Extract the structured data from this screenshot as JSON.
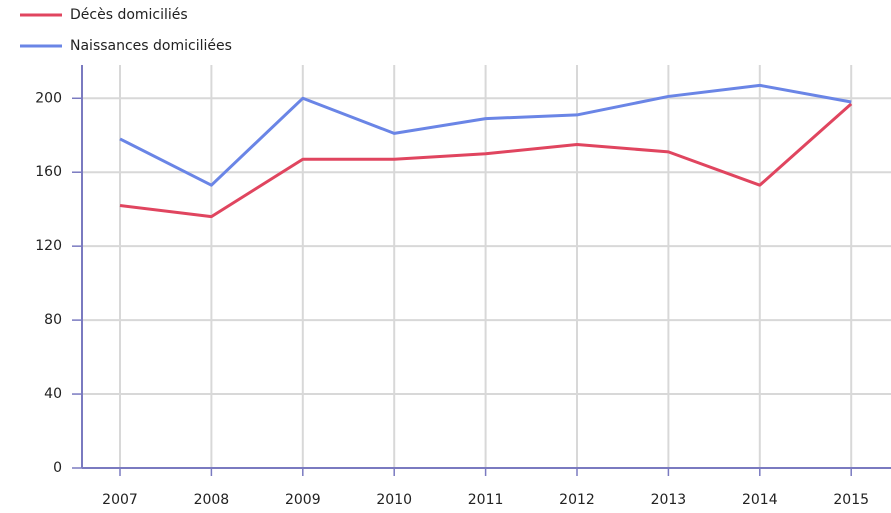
{
  "chart_data": {
    "type": "line",
    "categories": [
      "2007",
      "2008",
      "2009",
      "2010",
      "2011",
      "2012",
      "2013",
      "2014",
      "2015"
    ],
    "series": [
      {
        "name": "Décès domiciliés",
        "color": "#e0455f",
        "values": [
          142,
          136,
          167,
          167,
          170,
          175,
          171,
          153,
          197
        ]
      },
      {
        "name": "Naissances domiciliées",
        "color": "#6a85e6",
        "values": [
          178,
          153,
          200,
          181,
          189,
          191,
          201,
          207,
          198
        ]
      }
    ],
    "ylim": [
      0,
      218
    ],
    "yticks": [
      0,
      40,
      80,
      120,
      160,
      200
    ],
    "grid": true,
    "legend": "top-left"
  }
}
